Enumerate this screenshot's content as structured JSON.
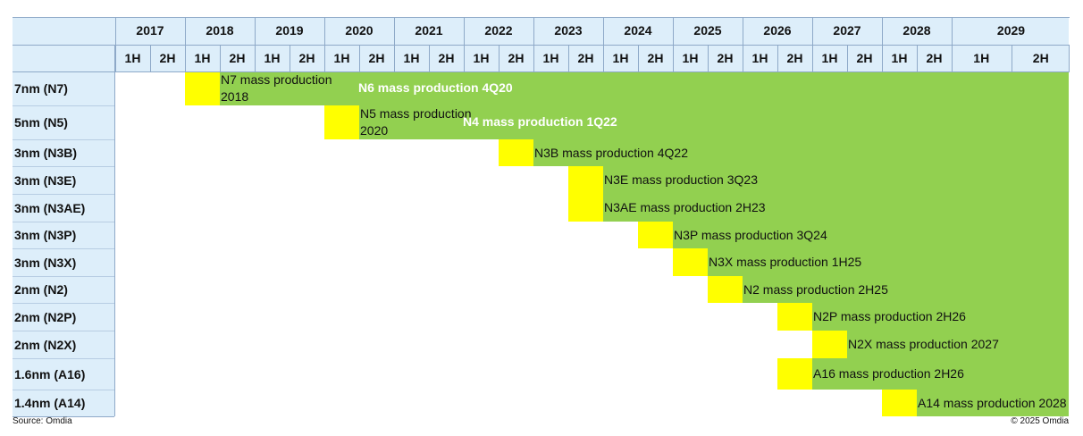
{
  "chart_data": {
    "type": "gantt",
    "title": "",
    "header_years": [
      "2017",
      "2018",
      "2019",
      "2020",
      "2021",
      "2022",
      "2023",
      "2024",
      "2025",
      "2026",
      "2027",
      "2028",
      "2029"
    ],
    "half_labels": [
      "1H",
      "2H"
    ],
    "timeline_start": "2017 1H",
    "timeline_end": "2029 2H",
    "rows": [
      {
        "label": "7nm (N7)",
        "start_half": "2018 1H",
        "annotation": "N7 mass production 2018"
      },
      {
        "label": "5nm (N5)",
        "start_half": "2020 1H",
        "annotation": "N5 mass production 2020"
      },
      {
        "label": "3nm (N3B)",
        "start_half": "2022 2H",
        "annotation": "N3B mass production 4Q22"
      },
      {
        "label": "3nm (N3E)",
        "start_half": "2023 2H",
        "annotation": "N3E mass production 3Q23"
      },
      {
        "label": "3nm (N3AE)",
        "start_half": "2023 2H",
        "annotation": "N3AE mass production 2H23"
      },
      {
        "label": "3nm (N3P)",
        "start_half": "2024 2H",
        "annotation": "N3P mass production 3Q24"
      },
      {
        "label": "3nm (N3X)",
        "start_half": "2025 1H",
        "annotation": "N3X mass production 1H25"
      },
      {
        "label": "2nm (N2)",
        "start_half": "2025 2H",
        "annotation": "N2 mass production 2H25"
      },
      {
        "label": "2nm (N2P)",
        "start_half": "2026 2H",
        "annotation": "N2P mass production 2H26"
      },
      {
        "label": "2nm (N2X)",
        "start_half": "2027 1H",
        "annotation": "N2X mass production 2027"
      },
      {
        "label": "1.6nm (A16)",
        "start_half": "2026 2H",
        "annotation": "A16 mass production 2H26"
      },
      {
        "label": "1.4nm (A14)",
        "start_half": "2028 1H",
        "annotation": "A14 mass production 2028"
      }
    ],
    "derivative_notes": [
      {
        "row": "7nm (N7)",
        "text": "N6 mass production 4Q20"
      },
      {
        "row": "5nm (N5)",
        "text": "N4 mass production 1Q22"
      }
    ],
    "colors": {
      "bar": "#92d050",
      "start_marker": "#ffff00",
      "header_bg": "#ddeefa",
      "grid": "#8ea9c8"
    }
  },
  "footer": {
    "source": "Source: Omdia",
    "copyright": "© 2025 Omdia"
  }
}
